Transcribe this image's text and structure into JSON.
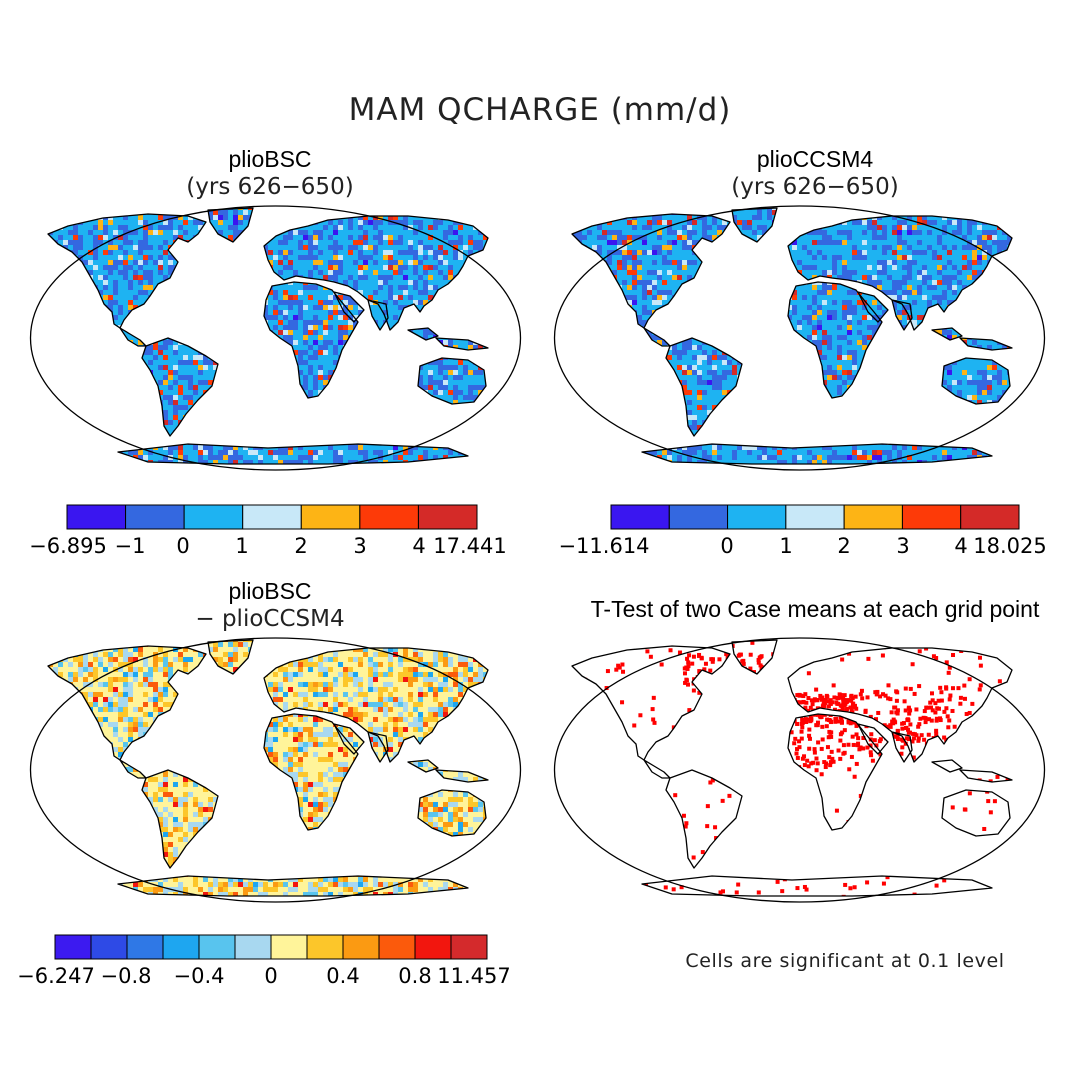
{
  "title": "MAM QCHARGE (mm/d)",
  "panels": [
    {
      "id": "pliobsc",
      "title": "plioBSC",
      "subtitle": "(yrs 626−650)",
      "colorbar": {
        "colors": [
          "#3a16f0",
          "#3468e0",
          "#1eb3f2",
          "#c8e8f8",
          "#fdb415",
          "#fd3a08",
          "#d42a28"
        ],
        "labels": [
          "−6.895",
          "−1",
          "0",
          "1",
          "2",
          "3",
          "4",
          "17.441"
        ]
      }
    },
    {
      "id": "plioccsm4",
      "title": "plioCCSM4",
      "subtitle": "(yrs 626−650)",
      "colorbar": {
        "colors": [
          "#3a16f0",
          "#3468e0",
          "#1eb3f2",
          "#c8e8f8",
          "#fdb415",
          "#fd3a08",
          "#d42a28"
        ],
        "labels": [
          "−11.614",
          "",
          "0",
          "1",
          "2",
          "3",
          "4",
          "18.025"
        ]
      }
    },
    {
      "id": "difference",
      "title": "plioBSC",
      "subtitle": "− plioCCSM4",
      "colorbar": {
        "colors": [
          "#3c1af0",
          "#2e4ae6",
          "#2f78e6",
          "#1ea6f0",
          "#58c4ee",
          "#a8d8f0",
          "#fff49a",
          "#fcc62a",
          "#fb9a12",
          "#fb5a0c",
          "#f2160e",
          "#d42a2c"
        ],
        "labels": [
          "−6.247",
          "−0.8",
          "−0.4",
          "0",
          "0.4",
          "0.8",
          "11.457"
        ]
      }
    },
    {
      "id": "ttest",
      "title": "T-Test of two Case means at each grid point",
      "note": "Cells are significant at 0.1 level",
      "color": "#ff0000"
    }
  ]
}
